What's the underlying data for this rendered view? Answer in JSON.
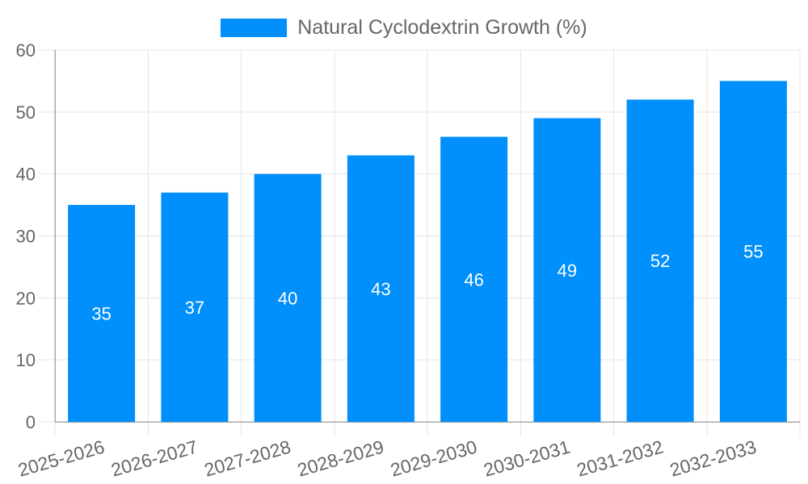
{
  "legend": {
    "series_label": "Natural Cyclodextrin Growth (%)",
    "swatch_color": "#008FFB"
  },
  "chart_data": {
    "type": "bar",
    "title": "Natural Cyclodextrin Growth (%)",
    "categories": [
      "2025-2026",
      "2026-2027",
      "2027-2028",
      "2028-2029",
      "2029-2030",
      "2030-2031",
      "2031-2032",
      "2032-2033"
    ],
    "series": [
      {
        "name": "Natural Cyclodextrin Growth (%)",
        "values": [
          35,
          37,
          40,
          43,
          46,
          49,
          52,
          55
        ]
      }
    ],
    "values": [
      35,
      37,
      40,
      43,
      46,
      49,
      52,
      55
    ],
    "xlabel": "",
    "ylabel": "",
    "ylim": [
      0,
      60
    ],
    "yticks": [
      0,
      10,
      20,
      30,
      40,
      50,
      60
    ],
    "grid": true,
    "legend_position": "top-center",
    "x_label_rotation_deg": -16,
    "value_label_position": "inside-center",
    "colors": {
      "bar": "#008FFB",
      "value_label": "#FFFFFF",
      "axis_text": "#666666",
      "grid_line": "#E4E4E4",
      "axis_line": "#A8A8A8",
      "background": "#FFFFFF"
    }
  }
}
